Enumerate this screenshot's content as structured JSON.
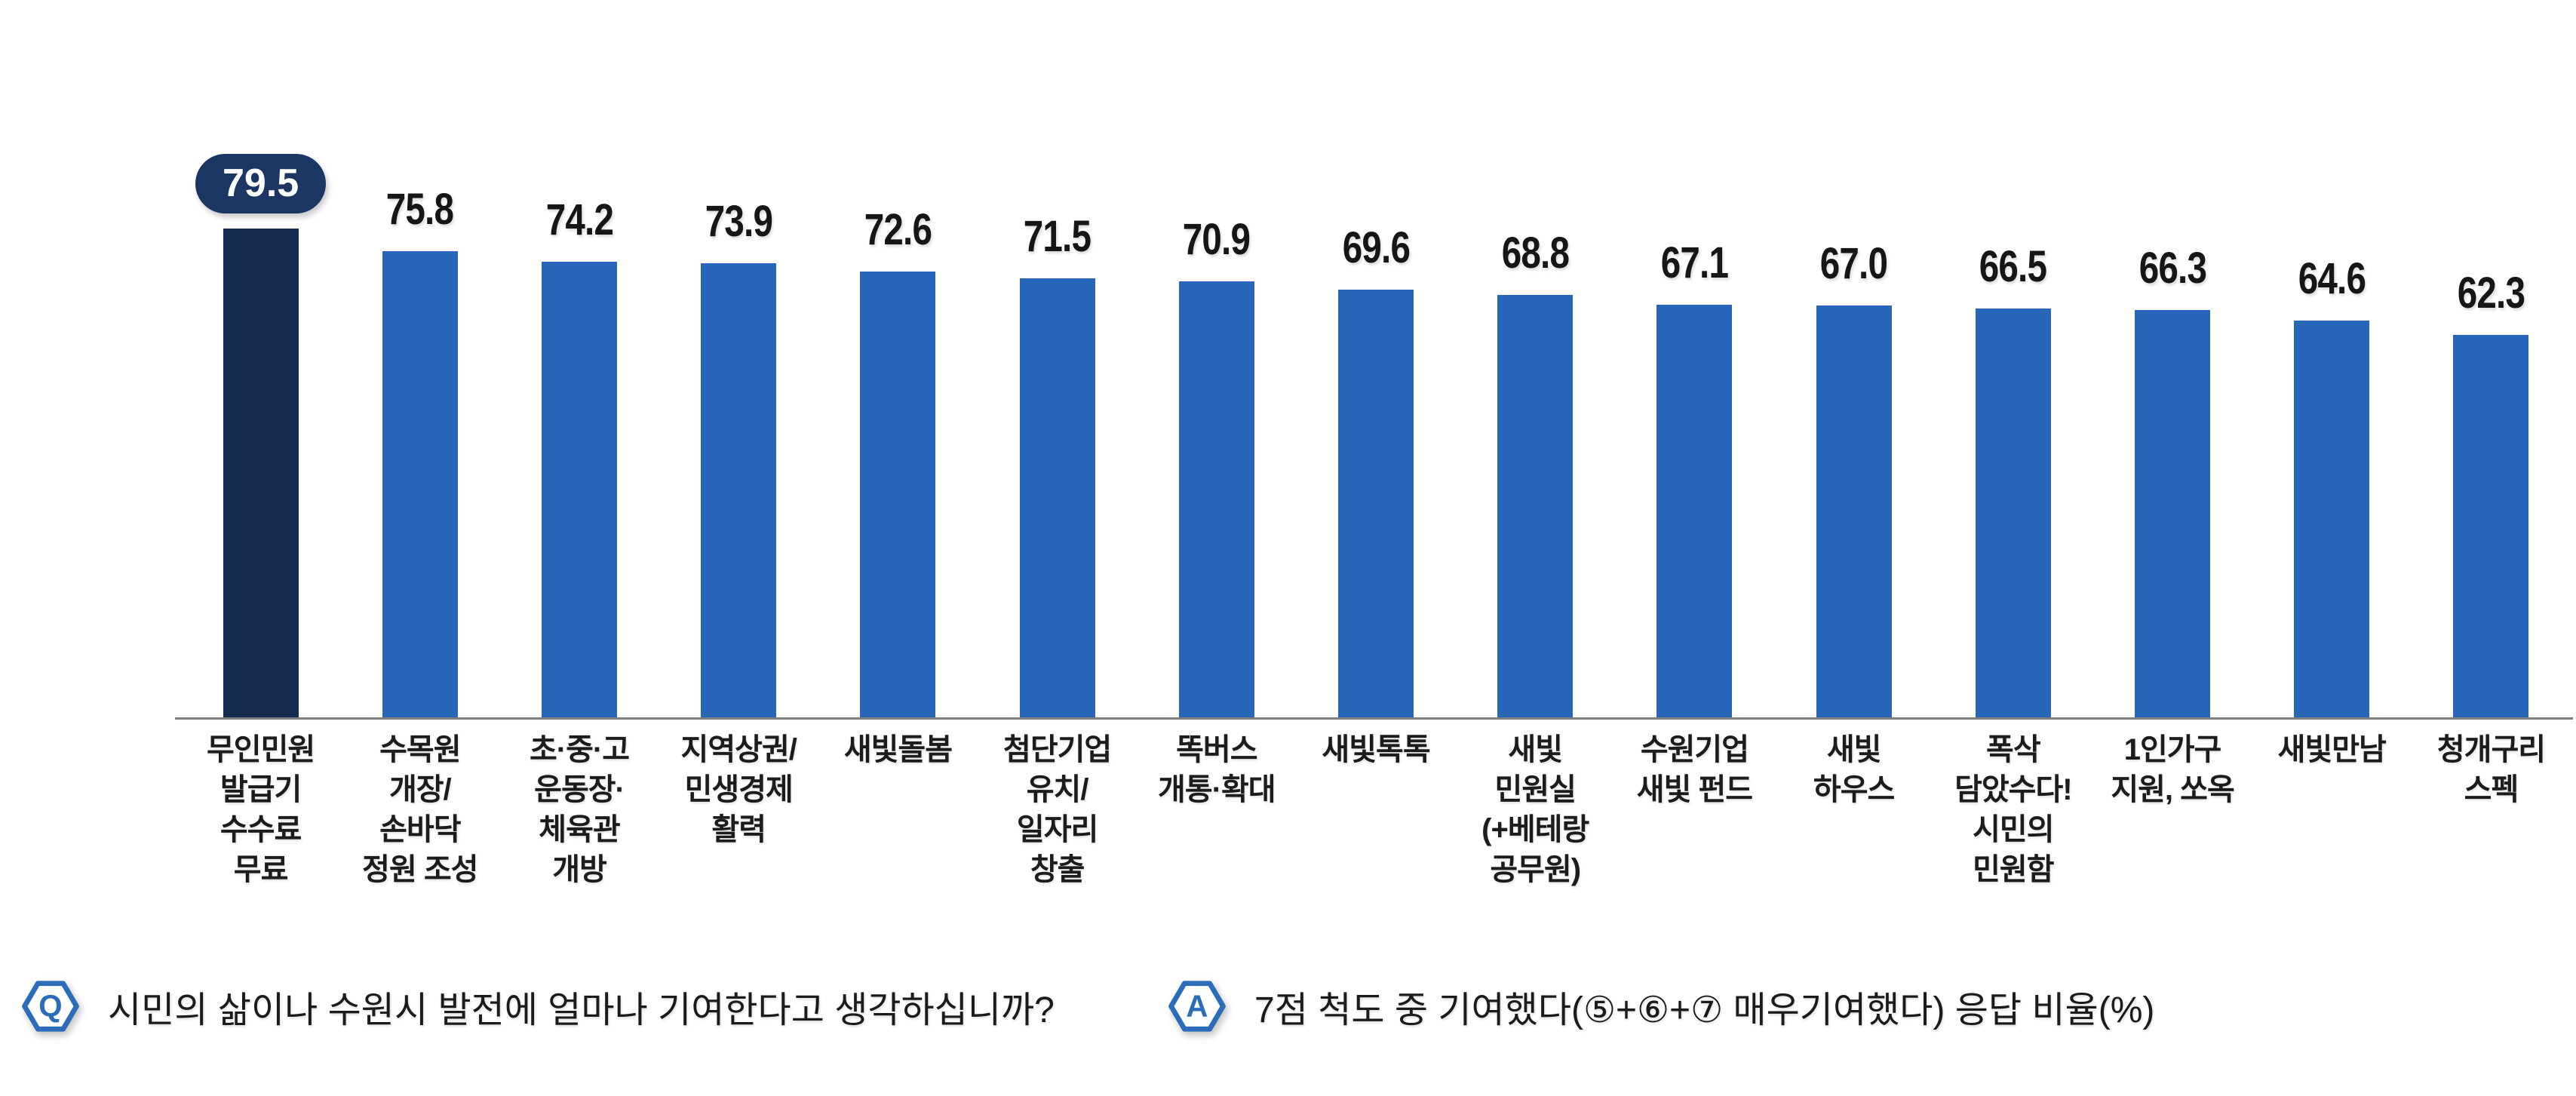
{
  "chart_data": {
    "type": "bar",
    "title": "",
    "unit": "%",
    "categories": [
      "무인민원 발급기 수수료 무료",
      "수목원 개장/ 손바닥 정원 조성",
      "초·중·고 운동장· 체육관 개방",
      "지역상권/ 민생경제 활력",
      "새빛돌봄",
      "첨단기업 유치/ 일자리 창출",
      "똑버스 개통·확대",
      "새빛톡톡",
      "새빛 민원실 (+베테랑 공무원)",
      "수원기업 새빛 펀드",
      "새빛 하우스",
      "폭삭 담았수다! 시민의 민원함",
      "1인가구 지원, 쏘옥",
      "새빛만남",
      "청개구리 스펙"
    ],
    "categories_lines": [
      [
        "무인민원",
        "발급기",
        "수수료",
        "무료"
      ],
      [
        "수목원",
        "개장/",
        "손바닥",
        "정원 조성"
      ],
      [
        "초·중·고",
        "운동장·",
        "체육관",
        "개방"
      ],
      [
        "지역상권/",
        "민생경제",
        "활력"
      ],
      [
        "새빛돌봄"
      ],
      [
        "첨단기업",
        "유치/",
        "일자리",
        "창출"
      ],
      [
        "똑버스",
        "개통·확대"
      ],
      [
        "새빛톡톡"
      ],
      [
        "새빛",
        "민원실",
        "(+베테랑",
        "공무원)"
      ],
      [
        "수원기업",
        "새빛 펀드"
      ],
      [
        "새빛",
        "하우스"
      ],
      [
        "폭삭",
        "담았수다!",
        "시민의",
        "민원함"
      ],
      [
        "1인가구",
        "지원, 쏘옥"
      ],
      [
        "새빛만남"
      ],
      [
        "청개구리",
        "스펙"
      ]
    ],
    "values": [
      79.5,
      75.8,
      74.2,
      73.9,
      72.6,
      71.5,
      70.9,
      69.6,
      68.8,
      67.1,
      67.0,
      66.5,
      66.3,
      64.6,
      62.3
    ],
    "value_labels": [
      "79.5",
      "75.8",
      "74.2",
      "73.9",
      "72.6",
      "71.5",
      "70.9",
      "69.6",
      "68.8",
      "67.1",
      "67.0",
      "66.5",
      "66.3",
      "64.6",
      "62.3"
    ],
    "highlight_index": 0,
    "value_labels_shown": true,
    "grid": false,
    "y_axis_visible": false,
    "ylim": [
      0,
      80
    ],
    "colors": {
      "bar": "#2766B8",
      "highlight_bar": "#142C50",
      "badge_bg": "#1B3663",
      "badge_text": "#FFFFFF",
      "baseline": "#7F7F7F",
      "value_label": "#161616"
    }
  },
  "footer": {
    "q_badge": "Q",
    "q_text": "시민의 삶이나 수원시 발전에 얼마나 기여한다고 생각하십니까?",
    "a_badge": "A",
    "a_text": "7점 척도 중 기여했다(⑤+⑥+⑦ 매우기여했다) 응답 비율(%)",
    "icon_color": "#2B6DB8"
  }
}
